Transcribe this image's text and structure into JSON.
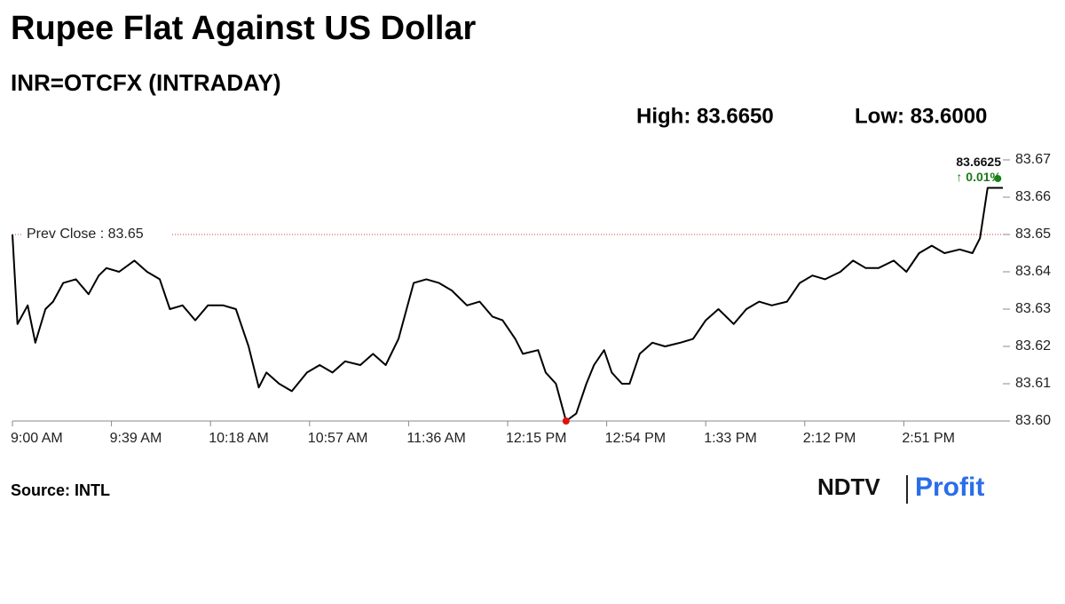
{
  "chart_data": {
    "type": "line",
    "title": "Rupee Flat Against US Dollar",
    "subtitle": "INR=OTCFX (INTRADAY)",
    "high_label": "High: 83.6650",
    "low_label": "Low: 83.6000",
    "high": 83.665,
    "high_time": "3:28 PM",
    "high_color": "#1a8a1a",
    "low": 83.6,
    "low_time": "12:38 PM",
    "low_color": "#e01010",
    "prev_close": 83.65,
    "prev_close_label": "Prev Close : 83.65",
    "prev_close_color": "#d04040",
    "last_label": "83.6625",
    "change_label": "↑ 0.01%",
    "change_color": "#1a7a1a",
    "source": "Source: INTL",
    "logo": [
      "NDTV",
      "Profit"
    ],
    "color": "#000000",
    "x": [
      "9:00 AM",
      "9:02 AM",
      "9:06 AM",
      "9:09 AM",
      "9:13 AM",
      "9:16 AM",
      "9:20 AM",
      "9:25 AM",
      "9:30 AM",
      "9:34 AM",
      "9:37 AM",
      "9:42 AM",
      "9:48 AM",
      "9:53 AM",
      "9:58 AM",
      "10:02 AM",
      "10:07 AM",
      "10:12 AM",
      "10:17 AM",
      "10:23 AM",
      "10:28 AM",
      "10:33 AM",
      "10:37 AM",
      "10:40 AM",
      "10:45 AM",
      "10:50 AM",
      "10:56 AM",
      "11:01 AM",
      "11:06 AM",
      "11:11 AM",
      "11:17 AM",
      "11:22 AM",
      "11:27 AM",
      "11:32 AM",
      "11:38 AM",
      "11:43 AM",
      "11:48 AM",
      "11:53 AM",
      "11:59 AM",
      "12:04 PM",
      "12:09 PM",
      "12:13 PM",
      "12:18 PM",
      "12:21 PM",
      "12:27 PM",
      "12:30 PM",
      "12:34 PM",
      "12:38 PM",
      "12:42 PM",
      "12:46 PM",
      "12:49 PM",
      "12:53 PM",
      "12:56 PM",
      "1:00 PM",
      "1:03 PM",
      "1:07 PM",
      "1:12 PM",
      "1:17 PM",
      "1:23 PM",
      "1:28 PM",
      "1:33 PM",
      "1:38 PM",
      "1:44 PM",
      "1:49 PM",
      "1:54 PM",
      "1:59 PM",
      "2:05 PM",
      "2:10 PM",
      "2:15 PM",
      "2:20 PM",
      "2:26 PM",
      "2:31 PM",
      "2:36 PM",
      "2:41 PM",
      "2:47 PM",
      "2:52 PM",
      "2:57 PM",
      "3:02 PM",
      "3:07 PM",
      "3:13 PM",
      "3:18 PM",
      "3:21 PM",
      "3:24 PM",
      "3:30 PM"
    ],
    "values": [
      83.65,
      83.626,
      83.631,
      83.621,
      83.63,
      83.632,
      83.637,
      83.638,
      83.634,
      83.639,
      83.641,
      83.64,
      83.643,
      83.64,
      83.638,
      83.63,
      83.631,
      83.627,
      83.631,
      83.631,
      83.63,
      83.62,
      83.609,
      83.613,
      83.61,
      83.608,
      83.613,
      83.615,
      83.613,
      83.616,
      83.615,
      83.618,
      83.615,
      83.622,
      83.637,
      83.638,
      83.637,
      83.635,
      83.631,
      83.632,
      83.628,
      83.627,
      83.622,
      83.618,
      83.619,
      83.613,
      83.61,
      83.6,
      83.602,
      83.61,
      83.615,
      83.619,
      83.613,
      83.61,
      83.61,
      83.618,
      83.621,
      83.62,
      83.621,
      83.622,
      83.627,
      83.63,
      83.626,
      83.63,
      83.632,
      83.631,
      83.632,
      83.637,
      83.639,
      83.638,
      83.64,
      83.643,
      83.641,
      83.641,
      83.643,
      83.64,
      83.645,
      83.647,
      83.645,
      83.646,
      83.645,
      83.649,
      83.6625,
      83.6625
    ],
    "xlim": [
      "9:00 AM",
      "3:30 PM"
    ],
    "xticks": [
      "9:00 AM",
      "9:39 AM",
      "10:18 AM",
      "10:57 AM",
      "11:36 AM",
      "12:15 PM",
      "12:54 PM",
      "1:33 PM",
      "2:12 PM",
      "2:51 PM"
    ],
    "ylim": [
      83.6,
      83.67
    ],
    "yticks": [
      {
        "value": 83.6,
        "label": "83.60"
      },
      83.61,
      83.62,
      83.63,
      83.64,
      83.65,
      83.66,
      83.67
    ]
  }
}
